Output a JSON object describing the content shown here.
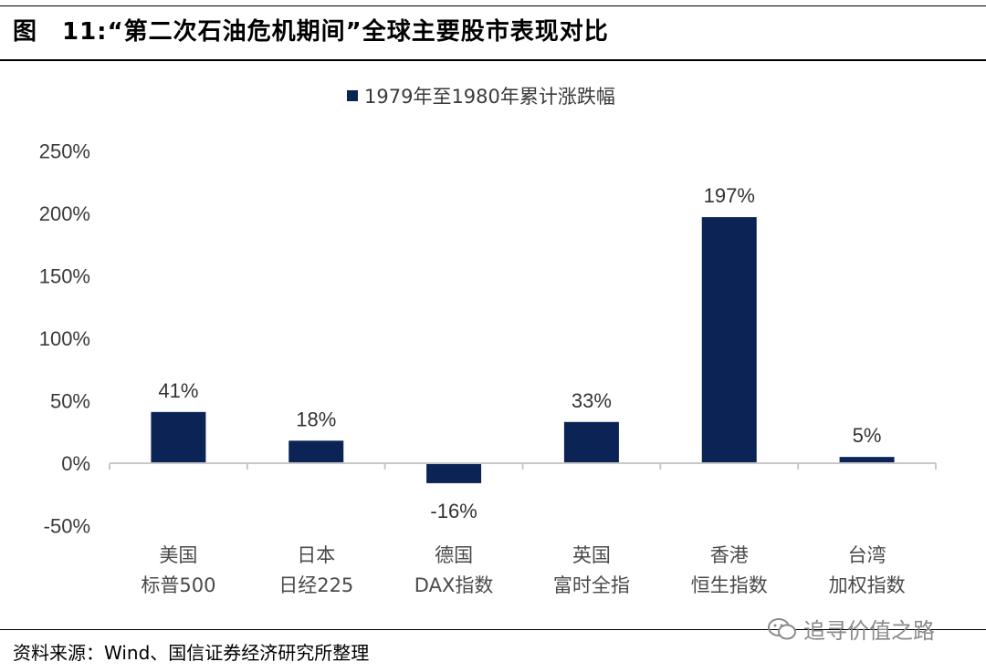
{
  "header": {
    "title": "图　11:“第二次石油危机期间”全球主要股市表现对比"
  },
  "footer": {
    "source": "资料来源：Wind、国信证券经济研究所整理",
    "watermark": "追寻价值之路"
  },
  "colors": {
    "bar": "#0b2455",
    "axis": "#c8c8c8"
  },
  "chart_data": {
    "type": "bar",
    "title": "",
    "legend_position": "top",
    "grid": false,
    "categories": [
      [
        "美国",
        "标普500"
      ],
      [
        "日本",
        "日经225"
      ],
      [
        "德国",
        "DAX指数"
      ],
      [
        "英国",
        "富时全指"
      ],
      [
        "香港",
        "恒生指数"
      ],
      [
        "台湾",
        "加权指数"
      ]
    ],
    "series": [
      {
        "name": "1979年至1980年累计涨跌幅",
        "values": [
          41,
          18,
          -16,
          33,
          197,
          5
        ]
      }
    ],
    "data_labels": [
      "41%",
      "18%",
      "-16%",
      "33%",
      "197%",
      "5%"
    ],
    "yticks": [
      -50,
      0,
      50,
      100,
      150,
      200,
      250
    ],
    "ytick_labels": [
      "-50%",
      "0%",
      "50%",
      "100%",
      "150%",
      "200%",
      "250%"
    ],
    "ylim": [
      -50,
      250
    ],
    "xlabel": "",
    "ylabel": ""
  }
}
